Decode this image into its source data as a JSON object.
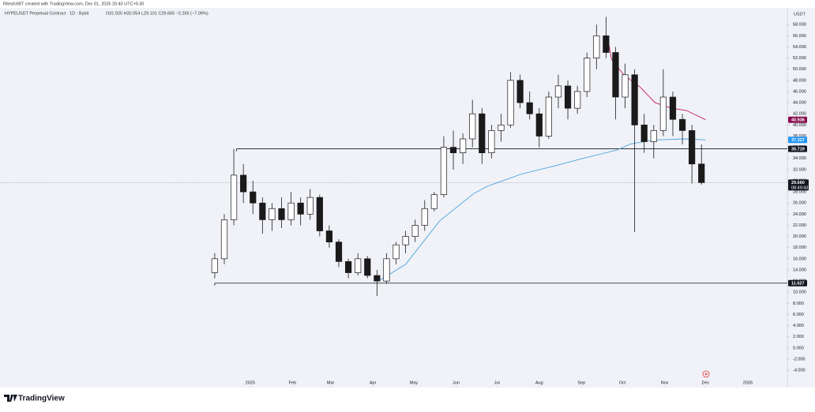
{
  "chart_data": {
    "type": "candlestick",
    "header": "RiteshXBT created with TradingView.com, Dec 01, 2025 20:40 UTC+5:30",
    "title": "HYPEUSDT Perpetual Contract · 1D · Bybit",
    "ohlc_text": "O31.925 H32.054 L29.101 C29.660 −2.265 (−7.09%)",
    "unit": "USDT",
    "brand": "TradingView",
    "up_color": "#ffffff",
    "down_color": "#1a1a1a",
    "x": [
      0,
      7,
      14,
      21,
      28,
      35,
      42,
      49,
      56,
      63,
      70,
      77,
      84,
      91,
      98,
      105,
      112,
      119,
      126,
      133,
      140,
      147,
      154,
      161,
      168,
      175,
      182,
      189,
      196,
      203,
      210,
      217,
      224,
      231,
      238,
      245,
      252,
      259,
      266,
      273,
      280,
      287,
      294,
      301,
      308,
      315,
      322,
      329,
      336,
      343,
      350,
      357
    ],
    "open": [
      13.5,
      16,
      23,
      31,
      28,
      26,
      23,
      25,
      23,
      26,
      24,
      27,
      21,
      19,
      15.5,
      13.5,
      16,
      13,
      12,
      16,
      18.5,
      20,
      22,
      25,
      27.5,
      36,
      35,
      37.5,
      42,
      35,
      39,
      40,
      48,
      44,
      42,
      38,
      45,
      47,
      43,
      46,
      52,
      56,
      53,
      45,
      49,
      40,
      37,
      39,
      45,
      41,
      39,
      33
    ],
    "high": [
      17,
      24,
      35.7,
      33,
      30,
      27,
      26,
      27,
      28,
      27,
      28.5,
      27.5,
      22,
      19.5,
      16,
      17,
      16.5,
      14,
      17,
      19,
      21,
      23,
      26.5,
      28,
      38,
      39,
      38.5,
      44.5,
      43,
      40,
      42,
      49.5,
      49,
      46,
      43,
      46,
      49,
      48,
      47,
      53,
      58,
      59.4,
      54,
      51,
      50,
      42,
      40,
      50,
      46,
      42,
      40,
      36.5
    ],
    "low": [
      12.5,
      15,
      22,
      26,
      24,
      20.5,
      21,
      21.5,
      22,
      22,
      23,
      20,
      18,
      14.5,
      12.5,
      13,
      12.5,
      9.3,
      11.5,
      15,
      17,
      19,
      21,
      24.5,
      27,
      32,
      33,
      36,
      33,
      34,
      37,
      39.5,
      43,
      41,
      36,
      37.5,
      43,
      41,
      42,
      45,
      50,
      52,
      41,
      43,
      20.8,
      35,
      34,
      38,
      38,
      36.5,
      29.5,
      29.3
    ],
    "close": [
      16,
      23,
      31,
      28,
      26,
      23,
      25,
      23,
      26,
      24,
      27,
      21,
      19,
      15.5,
      13.5,
      16,
      13,
      12,
      16,
      18.5,
      20,
      22,
      25,
      27.5,
      36,
      35,
      37.5,
      42,
      35,
      39,
      40,
      48,
      44,
      42,
      38,
      45,
      47,
      43,
      46,
      52,
      56,
      53,
      45,
      49,
      40,
      37,
      39,
      45,
      41,
      39,
      33,
      29.66
    ],
    "moving_averages": [
      {
        "color": "#4aa3df",
        "x": [
          120,
          140,
          165,
          190,
          200,
          225,
          250,
          270,
          295,
          305,
          322,
          345,
          360
        ],
        "values": [
          12,
          15,
          22.8,
          27.7,
          29,
          31.2,
          32.7,
          34,
          35.5,
          36.6,
          37.3,
          37.5,
          37.327
        ],
        "tag_color": "#2196f3"
      },
      {
        "color": "#c2185b",
        "x": [
          288,
          291,
          300,
          312,
          323,
          335,
          346,
          360
        ],
        "values": [
          56,
          51.8,
          49,
          46.8,
          44,
          43,
          42.6,
          40.936
        ],
        "tag_color": "#880e4f"
      }
    ],
    "levels": [
      {
        "value": 35.719,
        "x": 16
      },
      {
        "value": 11.627,
        "x": 0
      }
    ],
    "last_price": {
      "value": 29.66,
      "label": "29.660",
      "countdown": "08:49:43"
    },
    "xlim": [
      -157.5,
      420
    ],
    "ylim": [
      -7.1,
      61
    ],
    "xticks": [
      {
        "value": 26,
        "label": "2025"
      },
      {
        "value": 57,
        "label": "Feb"
      },
      {
        "value": 85,
        "label": "Mar"
      },
      {
        "value": 116,
        "label": "Apr"
      },
      {
        "value": 146,
        "label": "May"
      },
      {
        "value": 177,
        "label": "Jun"
      },
      {
        "value": 207,
        "label": "Jul"
      },
      {
        "value": 238,
        "label": "Aug"
      },
      {
        "value": 269,
        "label": "Sep"
      },
      {
        "value": 299,
        "label": "Oct"
      },
      {
        "value": 330,
        "label": "Nov"
      },
      {
        "value": 360,
        "label": "Dec"
      },
      {
        "value": 391,
        "label": "2026"
      }
    ],
    "yticks": [
      {
        "value": 58,
        "label": "58.000"
      },
      {
        "value": 56,
        "label": "56.000"
      },
      {
        "value": 54,
        "label": "54.000"
      },
      {
        "value": 52,
        "label": "52.000"
      },
      {
        "value": 50,
        "label": "50.000"
      },
      {
        "value": 48,
        "label": "48.000"
      },
      {
        "value": 46,
        "label": "46.000"
      },
      {
        "value": 44,
        "label": "44.000"
      },
      {
        "value": 42,
        "label": "42.000"
      },
      {
        "value": 40,
        "label": "40.000"
      },
      {
        "value": 38,
        "label": "38.000"
      },
      {
        "value": 36,
        "label": "36.000"
      },
      {
        "value": 34,
        "label": "34.000"
      },
      {
        "value": 32,
        "label": "32.000"
      },
      {
        "value": 30,
        "label": "30.000"
      },
      {
        "value": 28,
        "label": "28.000"
      },
      {
        "value": 26,
        "label": "26.000"
      },
      {
        "value": 24,
        "label": "24.000"
      },
      {
        "value": 22,
        "label": "22.000"
      },
      {
        "value": 20,
        "label": "20.000"
      },
      {
        "value": 18,
        "label": "18.000"
      },
      {
        "value": 16,
        "label": "16.000"
      },
      {
        "value": 14,
        "label": "14.000"
      },
      {
        "value": 12,
        "label": "12.000"
      },
      {
        "value": 10,
        "label": "10.000"
      },
      {
        "value": 8,
        "label": "8.000"
      },
      {
        "value": 6,
        "label": "6.000"
      },
      {
        "value": 4,
        "label": "4.000"
      },
      {
        "value": 2,
        "label": "2.000"
      },
      {
        "value": 0,
        "label": "0.000"
      },
      {
        "value": -2,
        "label": "-2.000"
      },
      {
        "value": -4,
        "label": "-4.000"
      }
    ]
  }
}
